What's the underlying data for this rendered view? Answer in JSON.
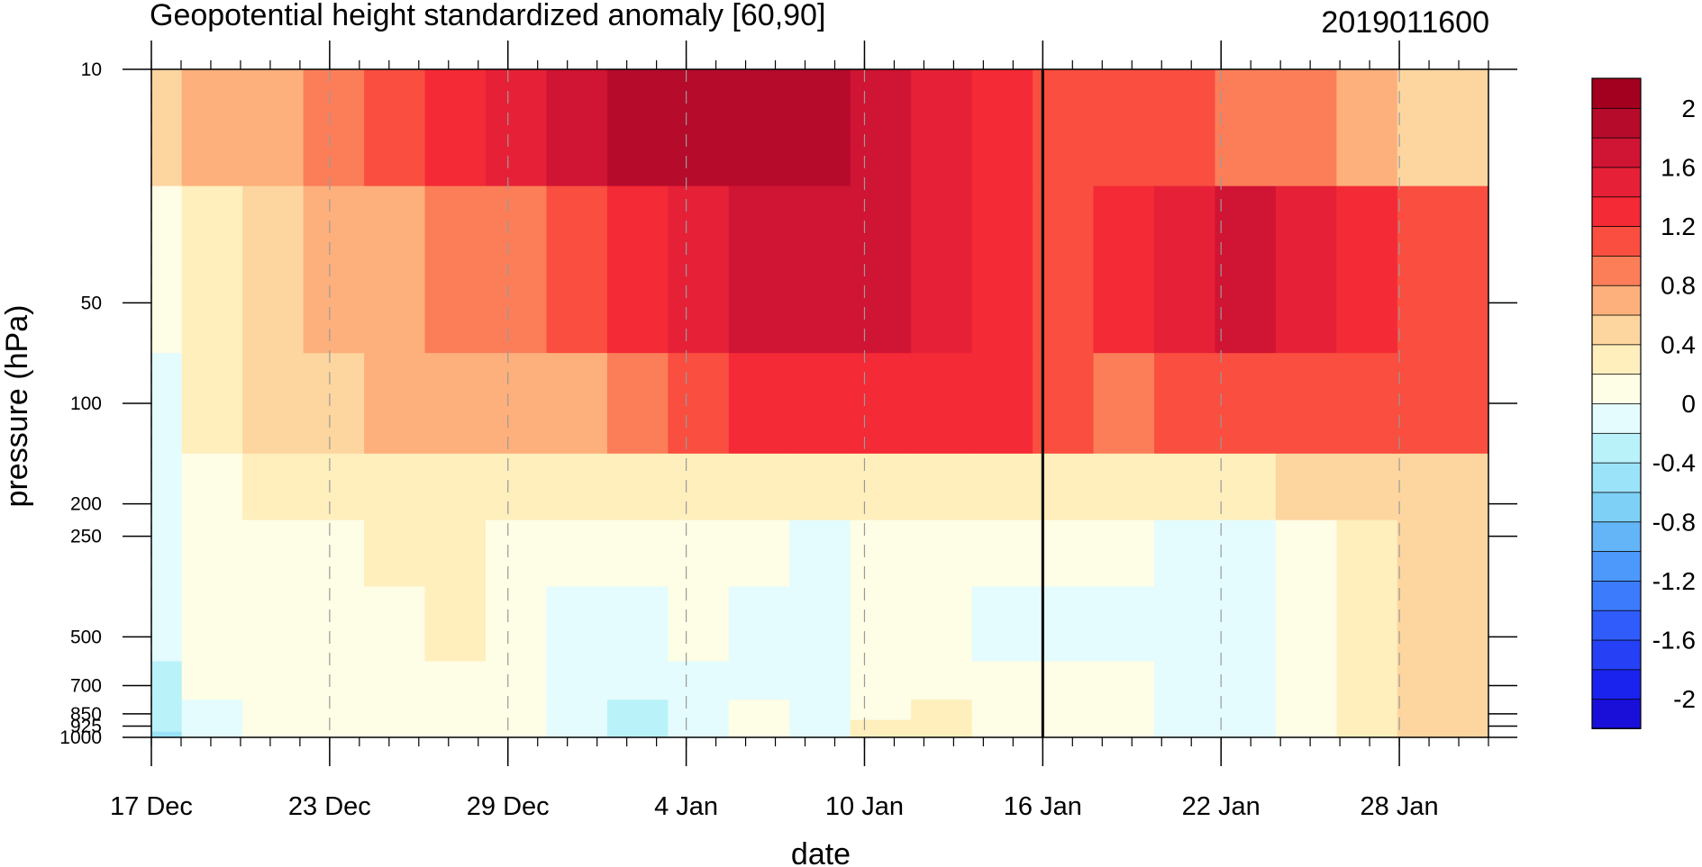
{
  "chart_data": {
    "type": "heatmap",
    "title": "Geopotential height standardized anomaly [60,90]",
    "subtitle": "2019011600",
    "xlabel": "date",
    "ylabel": "pressure (hPa)",
    "x_axis": {
      "type": "date",
      "range": [
        "2018-12-17",
        "2019-01-31"
      ],
      "tick_labels": [
        "17 Dec",
        "23 Dec",
        "29 Dec",
        "4 Jan",
        "10 Jan",
        "16 Jan",
        "22 Jan",
        "28 Jan"
      ],
      "tick_dates": [
        "2018-12-17",
        "2018-12-23",
        "2018-12-29",
        "2019-01-04",
        "2019-01-10",
        "2019-01-16",
        "2019-01-22",
        "2019-01-28"
      ],
      "minor_tick_interval_days": 1
    },
    "y_axis": {
      "scale": "log",
      "reversed": true,
      "range": [
        1000,
        10
      ],
      "tick_labels": [
        "10",
        "50",
        "100",
        "200",
        "250",
        "500",
        "700",
        "850",
        "925",
        "1000"
      ],
      "tick_values": [
        10,
        50,
        100,
        200,
        250,
        500,
        700,
        850,
        925,
        1000
      ]
    },
    "vertical_marker": {
      "date": "2019-01-16"
    },
    "grid": "dashed vertical lines at labeled dates",
    "colorbar": {
      "placement": "right",
      "labels": [
        "2",
        "1.6",
        "1.2",
        "0.8",
        "0.4",
        "0",
        "-0.4",
        "-0.8",
        "-1.2",
        "-1.6",
        "-2"
      ],
      "levels": [
        -2.2,
        -2.0,
        -1.8,
        -1.6,
        -1.4,
        -1.2,
        -1.0,
        -0.8,
        -0.6,
        -0.4,
        -0.2,
        0,
        0.2,
        0.4,
        0.6,
        0.8,
        1.0,
        1.2,
        1.4,
        1.6,
        1.8,
        2.0,
        2.2
      ],
      "colors": [
        "#1A0FD9",
        "#1A22EE",
        "#2540F5",
        "#2F5CFB",
        "#3C7BFC",
        "#4D98FB",
        "#64B4F8",
        "#7ED0F6",
        "#9BE3F8",
        "#BAF2FA",
        "#E4FCFD",
        "#FEFDE6",
        "#FEEFBD",
        "#FDD59F",
        "#FDB07C",
        "#FB7E58",
        "#F94E40",
        "#F42A36",
        "#E62137",
        "#D01434",
        "#B70B2C",
        "#A3001F"
      ]
    },
    "pressure_levels": [
      10,
      50,
      100,
      200,
      250,
      500,
      700,
      850,
      925,
      1000
    ],
    "dates": [
      "17 Dec",
      "19 Dec",
      "21 Dec",
      "23 Dec",
      "25 Dec",
      "27 Dec",
      "29 Dec",
      "31 Dec",
      "2 Jan",
      "4 Jan",
      "6 Jan",
      "8 Jan",
      "10 Jan",
      "12 Jan",
      "14 Jan",
      "16 Jan",
      "18 Jan",
      "20 Jan",
      "22 Jan",
      "24 Jan",
      "26 Jan",
      "28 Jan",
      "30 Jan"
    ],
    "values": [
      [
        0.5,
        0.6,
        0.7,
        0.8,
        1.0,
        1.3,
        1.5,
        1.7,
        1.8,
        1.8,
        1.8,
        1.8,
        1.75,
        1.55,
        1.3,
        1.15,
        1.1,
        1.0,
        0.9,
        0.8,
        0.7,
        0.55,
        0.45
      ],
      [
        0.15,
        0.3,
        0.5,
        0.6,
        0.65,
        0.8,
        0.9,
        1.05,
        1.25,
        1.45,
        1.6,
        1.65,
        1.65,
        1.5,
        1.3,
        1.15,
        1.3,
        1.55,
        1.65,
        1.45,
        1.25,
        1.1,
        1.0
      ],
      [
        -0.1,
        0.2,
        0.4,
        0.55,
        0.6,
        0.65,
        0.7,
        0.75,
        0.85,
        1.0,
        1.2,
        1.3,
        1.35,
        1.35,
        1.25,
        1.0,
        0.95,
        1.0,
        1.05,
        1.1,
        1.1,
        1.05,
        1.0
      ],
      [
        -0.15,
        0.05,
        0.2,
        0.3,
        0.3,
        0.3,
        0.2,
        0.25,
        0.3,
        0.3,
        0.35,
        0.35,
        0.3,
        0.25,
        0.2,
        0.25,
        0.3,
        0.35,
        0.35,
        0.4,
        0.45,
        0.5,
        0.55
      ],
      [
        -0.1,
        0.05,
        0.15,
        0.15,
        0.2,
        0.2,
        0.15,
        0.05,
        0.05,
        0.1,
        0.05,
        -0.1,
        0.05,
        0.1,
        0.05,
        0.05,
        0.05,
        -0.05,
        -0.1,
        0.1,
        0.25,
        0.45,
        0.55
      ],
      [
        -0.2,
        0.05,
        0.1,
        0.15,
        0.15,
        0.2,
        0.1,
        -0.05,
        -0.15,
        0.0,
        -0.1,
        -0.15,
        0.05,
        0.1,
        -0.05,
        -0.05,
        -0.1,
        -0.15,
        -0.1,
        0.05,
        0.2,
        0.4,
        0.55
      ],
      [
        -0.3,
        0.0,
        0.1,
        0.15,
        0.15,
        0.15,
        0.05,
        -0.1,
        -0.2,
        -0.05,
        -0.05,
        -0.1,
        0.1,
        0.15,
        0.05,
        0.05,
        0.05,
        -0.05,
        -0.1,
        0.0,
        0.2,
        0.4,
        0.55
      ],
      [
        -0.35,
        -0.05,
        0.1,
        0.15,
        0.15,
        0.15,
        0.05,
        -0.15,
        -0.3,
        -0.1,
        0.0,
        -0.05,
        0.15,
        0.2,
        0.1,
        0.05,
        0.05,
        -0.05,
        -0.1,
        0.0,
        0.2,
        0.4,
        0.55
      ],
      [
        -0.4,
        -0.1,
        0.1,
        0.15,
        0.15,
        0.15,
        0.05,
        -0.2,
        -0.35,
        -0.1,
        0.0,
        -0.05,
        0.2,
        0.25,
        0.1,
        0.05,
        0.0,
        -0.05,
        -0.1,
        0.0,
        0.2,
        0.4,
        0.55
      ],
      [
        -0.45,
        -0.1,
        0.1,
        0.15,
        0.15,
        0.15,
        0.0,
        -0.2,
        -0.4,
        -0.1,
        0.0,
        -0.05,
        0.2,
        0.25,
        0.1,
        0.05,
        0.0,
        -0.05,
        -0.1,
        0.0,
        0.2,
        0.4,
        0.55
      ]
    ]
  }
}
